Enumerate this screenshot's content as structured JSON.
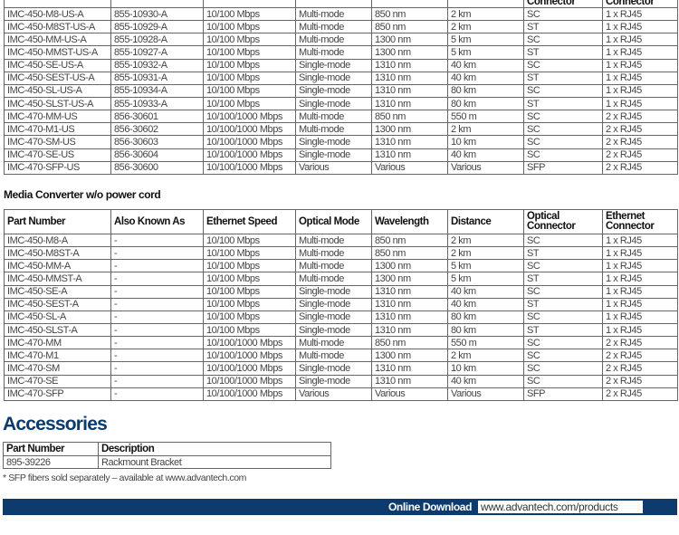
{
  "table1": {
    "partial_headers": [
      "",
      "",
      "",
      "",
      "",
      "",
      "Connector",
      "Connector"
    ],
    "rows": [
      [
        "IMC-450-M8-US-A",
        "855-10930-A",
        "10/100 Mbps",
        "Multi-mode",
        "850 nm",
        "2 km",
        "SC",
        "1 x RJ45"
      ],
      [
        "IMC-450-M8ST-US-A",
        "855-10929-A",
        "10/100 Mbps",
        "Multi-mode",
        "850 nm",
        "2 km",
        "ST",
        "1 x RJ45"
      ],
      [
        "IMC-450-MM-US-A",
        "855-10928-A",
        "10/100 Mbps",
        "Multi-mode",
        "1300 nm",
        "5 km",
        "SC",
        "1 x RJ45"
      ],
      [
        "IMC-450-MMST-US-A",
        "855-10927-A",
        "10/100 Mbps",
        "Multi-mode",
        "1300 nm",
        "5 km",
        "ST",
        "1 x RJ45"
      ],
      [
        "IMC-450-SE-US-A",
        "855-10932-A",
        "10/100 Mbps",
        "Single-mode",
        "1310 nm",
        "40 km",
        "SC",
        "1 x RJ45"
      ],
      [
        "IMC-450-SEST-US-A",
        "855-10931-A",
        "10/100 Mbps",
        "Single-mode",
        "1310 nm",
        "40 km",
        "ST",
        "1 x RJ45"
      ],
      [
        "IMC-450-SL-US-A",
        "855-10934-A",
        "10/100 Mbps",
        "Single-mode",
        "1310 nm",
        "80 km",
        "SC",
        "1 x RJ45"
      ],
      [
        "IMC-450-SLST-US-A",
        "855-10933-A",
        "10/100 Mbps",
        "Single-mode",
        "1310 nm",
        "80 km",
        "ST",
        "1 x RJ45"
      ],
      [
        "IMC-470-MM-US",
        "856-30601",
        "10/100/1000 Mbps",
        "Multi-mode",
        "850 nm",
        "550 m",
        "SC",
        "2 x RJ45"
      ],
      [
        "IMC-470-M1-US",
        "856-30602",
        "10/100/1000 Mbps",
        "Multi-mode",
        "1300 nm",
        "2 km",
        "SC",
        "2 x RJ45"
      ],
      [
        "IMC-470-SM-US",
        "856-30603",
        "10/100/1000 Mbps",
        "Single-mode",
        "1310 nm",
        "10 km",
        "SC",
        "2 x RJ45"
      ],
      [
        "IMC-470-SE-US",
        "856-30604",
        "10/100/1000 Mbps",
        "Single-mode",
        "1310 nm",
        "40 km",
        "SC",
        "2 x RJ45"
      ],
      [
        "IMC-470-SFP-US",
        "856-30600",
        "10/100/1000 Mbps",
        "Various",
        "Various",
        "Various",
        "SFP",
        "2 x RJ45"
      ]
    ]
  },
  "section2_title": "Media Converter w/o power cord",
  "table2": {
    "headers": [
      "Part Number",
      "Also Known As",
      "Ethernet Speed",
      "Optical Mode",
      "Wavelength",
      "Distance",
      "Optical Connector",
      "Ethernet Connector"
    ],
    "rows": [
      [
        "IMC-450-M8-A",
        "-",
        "10/100 Mbps",
        "Multi-mode",
        "850 nm",
        "2 km",
        "SC",
        "1 x RJ45"
      ],
      [
        "IMC-450-M8ST-A",
        "-",
        "10/100 Mbps",
        "Multi-mode",
        "850 nm",
        "2 km",
        "ST",
        "1 x RJ45"
      ],
      [
        "IMC-450-MM-A",
        "-",
        "10/100 Mbps",
        "Multi-mode",
        "1300 nm",
        "5 km",
        "SC",
        "1 x RJ45"
      ],
      [
        "IMC-450-MMST-A",
        "-",
        "10/100 Mbps",
        "Multi-mode",
        "1300 nm",
        "5 km",
        "ST",
        "1 x RJ45"
      ],
      [
        "IMC-450-SE-A",
        "-",
        "10/100 Mbps",
        "Single-mode",
        "1310 nm",
        "40 km",
        "SC",
        "1 x RJ45"
      ],
      [
        "IMC-450-SEST-A",
        "-",
        "10/100 Mbps",
        "Single-mode",
        "1310 nm",
        "40 km",
        "ST",
        "1 x RJ45"
      ],
      [
        "IMC-450-SL-A",
        "-",
        "10/100 Mbps",
        "Single-mode",
        "1310 nm",
        "80 km",
        "SC",
        "1 x RJ45"
      ],
      [
        "IMC-450-SLST-A",
        "-",
        "10/100 Mbps",
        "Single-mode",
        "1310 nm",
        "80 km",
        "ST",
        "1 x RJ45"
      ],
      [
        "IMC-470-MM",
        "-",
        "10/100/1000 Mbps",
        "Multi-mode",
        "850 nm",
        "550 m",
        "SC",
        "2 x RJ45"
      ],
      [
        "IMC-470-M1",
        "-",
        "10/100/1000 Mbps",
        "Multi-mode",
        "1300 nm",
        "2 km",
        "SC",
        "2 x RJ45"
      ],
      [
        "IMC-470-SM",
        "-",
        "10/100/1000 Mbps",
        "Single-mode",
        "1310 nm",
        "10 km",
        "SC",
        "2 x RJ45"
      ],
      [
        "IMC-470-SE",
        "-",
        "10/100/1000 Mbps",
        "Single-mode",
        "1310 nm",
        "40 km",
        "SC",
        "2 x RJ45"
      ],
      [
        "IMC-470-SFP",
        "-",
        "10/100/1000 Mbps",
        "Various",
        "Various",
        "Various",
        "SFP",
        "2 x RJ45"
      ]
    ]
  },
  "accessories": {
    "title": "Accessories",
    "headers": [
      "Part Number",
      "Description"
    ],
    "rows": [
      [
        "895-39226",
        "Rackmount Bracket"
      ]
    ]
  },
  "note": "* SFP fibers sold separately – available at www.advantech.com",
  "footer": {
    "label": "Online Download",
    "url": "www.advantech.com/products"
  },
  "colors": {
    "brand": "#0d3b6e"
  }
}
